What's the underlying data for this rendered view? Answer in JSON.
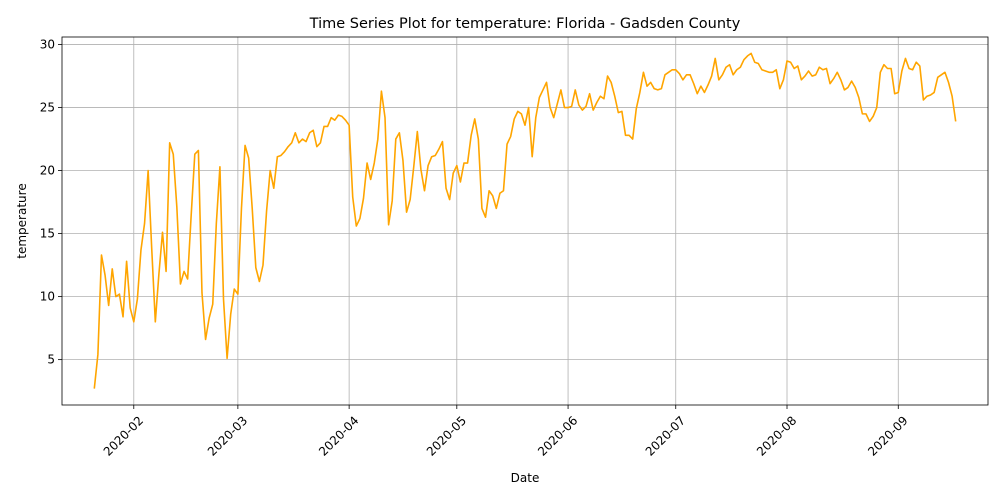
{
  "chart_data": {
    "type": "line",
    "title": "Time Series Plot for temperature: Florida - Gadsden County",
    "xlabel": "Date",
    "ylabel": "temperature",
    "grid": true,
    "line_color": "#FFA500",
    "xlim": [
      "2020-01-12",
      "2020-09-26"
    ],
    "ylim": [
      1.4,
      30.6
    ],
    "yticks": [
      5,
      10,
      15,
      20,
      25,
      30
    ],
    "xticks": [
      {
        "date": "2020-02-01",
        "label": "2020-02"
      },
      {
        "date": "2020-03-01",
        "label": "2020-03"
      },
      {
        "date": "2020-04-01",
        "label": "2020-04"
      },
      {
        "date": "2020-05-01",
        "label": "2020-05"
      },
      {
        "date": "2020-06-01",
        "label": "2020-06"
      },
      {
        "date": "2020-07-01",
        "label": "2020-07"
      },
      {
        "date": "2020-08-01",
        "label": "2020-08"
      },
      {
        "date": "2020-09-01",
        "label": "2020-09"
      }
    ],
    "series": [
      {
        "start_date": "2020-01-21",
        "step_days": 1,
        "values": [
          2.7,
          5.4,
          13.3,
          11.7,
          9.3,
          12.2,
          10.0,
          10.2,
          8.4,
          12.8,
          9.1,
          8.0,
          9.8,
          13.7,
          15.8,
          20.0,
          13.8,
          8.0,
          11.8,
          15.1,
          12.0,
          22.2,
          21.3,
          17.1,
          11.0,
          12.0,
          11.4,
          16.5,
          21.3,
          21.6,
          10.3,
          6.6,
          8.3,
          9.4,
          15.8,
          20.3,
          9.8,
          5.1,
          8.6,
          10.6,
          10.2,
          17.0,
          22.0,
          21.0,
          17.0,
          12.3,
          11.2,
          12.5,
          16.8,
          20.0,
          18.6,
          21.1,
          21.2,
          21.5,
          21.9,
          22.2,
          23.0,
          22.2,
          22.5,
          22.3,
          23.0,
          23.2,
          21.9,
          22.2,
          23.5,
          23.5,
          24.2,
          24.0,
          24.4,
          24.3,
          24.0,
          23.6,
          17.9,
          15.6,
          16.2,
          17.8,
          20.6,
          19.3,
          20.6,
          22.5,
          26.3,
          24.2,
          15.7,
          17.6,
          22.5,
          23.0,
          20.8,
          16.7,
          17.7,
          20.3,
          23.1,
          20.1,
          18.4,
          20.4,
          21.1,
          21.2,
          21.7,
          22.3,
          18.6,
          17.7,
          19.8,
          20.4,
          19.1,
          20.6,
          20.6,
          22.8,
          24.1,
          22.5,
          17.0,
          16.3,
          18.4,
          18.0,
          17.0,
          18.2,
          18.4,
          22.1,
          22.7,
          24.1,
          24.7,
          24.5,
          23.6,
          25.0,
          21.1,
          24.2,
          25.8,
          26.4,
          27.0,
          25.0,
          24.2,
          25.3,
          26.4,
          25.0,
          25.0,
          25.1,
          26.4,
          25.2,
          24.8,
          25.1,
          26.1,
          24.8,
          25.4,
          25.9,
          25.7,
          27.5,
          27.0,
          25.9,
          24.6,
          24.7,
          22.8,
          22.8,
          22.5,
          24.9,
          26.2,
          27.8,
          26.7,
          27.0,
          26.5,
          26.4,
          26.5,
          27.6,
          27.8,
          28.0,
          28.0,
          27.7,
          27.2,
          27.6,
          27.6,
          26.9,
          26.1,
          26.7,
          26.2,
          26.8,
          27.5,
          28.9,
          27.2,
          27.6,
          28.2,
          28.4,
          27.6,
          28.0,
          28.2,
          28.8,
          29.1,
          29.3,
          28.6,
          28.5,
          28.0,
          27.9,
          27.8,
          27.8,
          28.0,
          26.5,
          27.2,
          28.7,
          28.6,
          28.1,
          28.3,
          27.2,
          27.5,
          27.9,
          27.5,
          27.6,
          28.2,
          28.0,
          28.1,
          26.9,
          27.3,
          27.8,
          27.2,
          26.4,
          26.6,
          27.1,
          26.6,
          25.8,
          24.5,
          24.5,
          23.9,
          24.3,
          25.0,
          27.8,
          28.4,
          28.1,
          28.1,
          26.1,
          26.2,
          27.9,
          28.9,
          28.1,
          28.0,
          28.6,
          28.3,
          25.6,
          25.9,
          26.0,
          26.2,
          27.4,
          27.6,
          27.8,
          27.0,
          25.9,
          23.9
        ]
      }
    ]
  }
}
